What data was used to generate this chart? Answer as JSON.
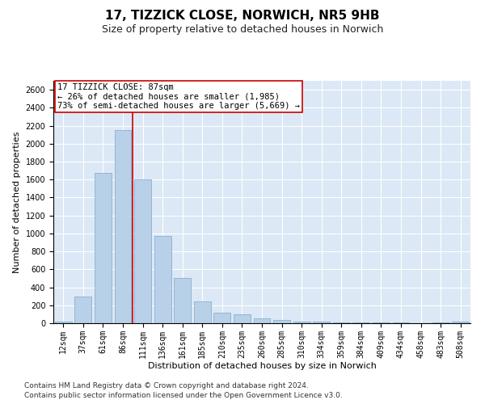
{
  "title1": "17, TIZZICK CLOSE, NORWICH, NR5 9HB",
  "title2": "Size of property relative to detached houses in Norwich",
  "xlabel": "Distribution of detached houses by size in Norwich",
  "ylabel": "Number of detached properties",
  "categories": [
    "12sqm",
    "37sqm",
    "61sqm",
    "86sqm",
    "111sqm",
    "136sqm",
    "161sqm",
    "185sqm",
    "210sqm",
    "235sqm",
    "260sqm",
    "285sqm",
    "310sqm",
    "334sqm",
    "359sqm",
    "384sqm",
    "409sqm",
    "434sqm",
    "458sqm",
    "483sqm",
    "508sqm"
  ],
  "values": [
    20,
    300,
    1675,
    2150,
    1600,
    970,
    500,
    245,
    120,
    100,
    50,
    35,
    20,
    15,
    10,
    8,
    5,
    10,
    3,
    5,
    15
  ],
  "bar_color": "#b8d0e8",
  "bar_edge_color": "#7aaac8",
  "vline_color": "#cc0000",
  "annotation_box_text": "17 TIZZICK CLOSE: 87sqm\n← 26% of detached houses are smaller (1,985)\n73% of semi-detached houses are larger (5,669) →",
  "annotation_box_color": "#cc0000",
  "annotation_text_color": "#000000",
  "ylim": [
    0,
    2700
  ],
  "yticks": [
    0,
    200,
    400,
    600,
    800,
    1000,
    1200,
    1400,
    1600,
    1800,
    2000,
    2200,
    2400,
    2600
  ],
  "bg_color": "#dce8f5",
  "footer1": "Contains HM Land Registry data © Crown copyright and database right 2024.",
  "footer2": "Contains public sector information licensed under the Open Government Licence v3.0.",
  "title1_fontsize": 11,
  "title2_fontsize": 9,
  "xlabel_fontsize": 8,
  "ylabel_fontsize": 8,
  "tick_fontsize": 7,
  "footer_fontsize": 6.5,
  "annotation_fontsize": 7.5
}
